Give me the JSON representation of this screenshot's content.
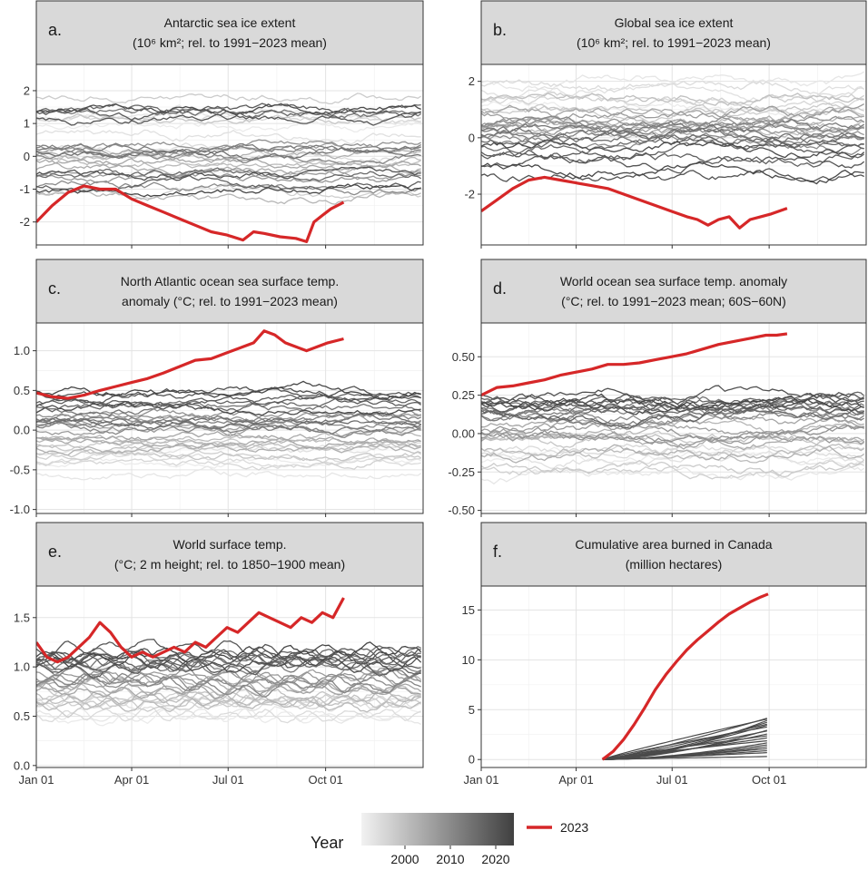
{
  "figure": {
    "legend": {
      "colorbar_title": "Year",
      "colorbar_ticks": [
        "2000",
        "2010",
        "2020"
      ],
      "highlight_label": "2023",
      "highlight_color": "#d62728",
      "gradient_light": "#f2f2f2",
      "gradient_dark": "#404040"
    }
  },
  "chart_data": [
    {
      "id": "a",
      "type": "line",
      "label": "a.",
      "title_line1": "Antarctic sea ice extent",
      "title_line2": "(10⁶ km²; rel. to 1991−2023 mean)",
      "ylim": [
        -2.7,
        2.8
      ],
      "yticks": [
        -2,
        -1,
        0,
        1,
        2
      ],
      "ytick_labels": [
        "-2",
        "-1",
        "0",
        "1",
        "2"
      ],
      "xlim": [
        0,
        365
      ],
      "xticks": [
        0,
        90,
        181,
        273
      ],
      "xtick_labels": [],
      "background_band": [
        -1.2,
        1.8
      ],
      "x_end": 365,
      "highlight_2023": {
        "x": [
          0,
          15,
          30,
          45,
          60,
          75,
          90,
          105,
          120,
          135,
          150,
          165,
          180,
          195,
          205,
          215,
          230,
          245,
          255,
          262,
          270,
          278,
          290
        ],
        "y": [
          -2.0,
          -1.5,
          -1.1,
          -0.9,
          -1.0,
          -1.0,
          -1.3,
          -1.5,
          -1.7,
          -1.9,
          -2.1,
          -2.3,
          -2.4,
          -2.55,
          -2.3,
          -2.35,
          -2.45,
          -2.5,
          -2.6,
          -2.0,
          -1.8,
          -1.6,
          -1.4
        ]
      }
    },
    {
      "id": "b",
      "type": "line",
      "label": "b.",
      "title_line1": "Global sea ice extent",
      "title_line2": "(10⁶ km²; rel. to 1991−2023 mean)",
      "ylim": [
        -3.8,
        2.6
      ],
      "yticks": [
        -2,
        0,
        2
      ],
      "ytick_labels": [
        "-2",
        "0",
        "2"
      ],
      "xlim": [
        0,
        365
      ],
      "xticks": [
        0,
        90,
        181,
        273
      ],
      "xtick_labels": [],
      "background_band": [
        -2.0,
        2.2
      ],
      "x_end": 365,
      "highlight_2023": {
        "x": [
          0,
          15,
          30,
          45,
          60,
          75,
          90,
          105,
          120,
          135,
          150,
          165,
          180,
          195,
          205,
          215,
          225,
          235,
          245,
          255,
          265,
          275,
          290
        ],
        "y": [
          -2.6,
          -2.2,
          -1.8,
          -1.5,
          -1.4,
          -1.5,
          -1.6,
          -1.7,
          -1.8,
          -2.0,
          -2.2,
          -2.4,
          -2.6,
          -2.8,
          -2.9,
          -3.1,
          -2.9,
          -2.8,
          -3.2,
          -2.9,
          -2.8,
          -2.7,
          -2.5
        ]
      }
    },
    {
      "id": "c",
      "type": "line",
      "label": "c.",
      "title_line1": "North Atlantic ocean sea surface temp.",
      "title_line2": "anomaly (°C; rel. to 1991−2023 mean)",
      "ylim": [
        -1.05,
        1.35
      ],
      "yticks": [
        -1.0,
        -0.5,
        0.0,
        0.5,
        1.0
      ],
      "ytick_labels": [
        "-1.0",
        "-0.5",
        "0.0",
        "0.5",
        "1.0"
      ],
      "xlim": [
        0,
        365
      ],
      "xticks": [
        0,
        90,
        181,
        273
      ],
      "xtick_labels": [],
      "background_band": [
        -0.6,
        0.6
      ],
      "x_end": 365,
      "highlight_2023": {
        "x": [
          0,
          15,
          30,
          45,
          60,
          75,
          90,
          105,
          120,
          135,
          150,
          165,
          175,
          185,
          195,
          205,
          215,
          225,
          235,
          245,
          255,
          265,
          275,
          290
        ],
        "y": [
          0.47,
          0.42,
          0.4,
          0.44,
          0.5,
          0.55,
          0.6,
          0.65,
          0.72,
          0.8,
          0.88,
          0.9,
          0.95,
          1.0,
          1.05,
          1.1,
          1.25,
          1.2,
          1.1,
          1.05,
          1.0,
          1.05,
          1.1,
          1.15
        ]
      }
    },
    {
      "id": "d",
      "type": "line",
      "label": "d.",
      "title_line1": "World ocean sea surface temp. anomaly",
      "title_line2": "(°C; rel. to 1991−2023 mean; 60S−60N)",
      "ylim": [
        -0.52,
        0.72
      ],
      "yticks": [
        -0.5,
        -0.25,
        0.0,
        0.25,
        0.5
      ],
      "ytick_labels": [
        "-0.50",
        "-0.25",
        "0.00",
        "0.25",
        "0.50"
      ],
      "xlim": [
        0,
        365
      ],
      "xticks": [
        0,
        90,
        181,
        273
      ],
      "xtick_labels": [],
      "background_band": [
        -0.35,
        0.4
      ],
      "x_end": 365,
      "highlight_2023": {
        "x": [
          0,
          15,
          30,
          45,
          60,
          75,
          90,
          105,
          120,
          135,
          150,
          165,
          180,
          195,
          210,
          225,
          240,
          255,
          270,
          280,
          290
        ],
        "y": [
          0.25,
          0.3,
          0.31,
          0.33,
          0.35,
          0.38,
          0.4,
          0.42,
          0.45,
          0.45,
          0.46,
          0.48,
          0.5,
          0.52,
          0.55,
          0.58,
          0.6,
          0.62,
          0.64,
          0.64,
          0.65
        ]
      }
    },
    {
      "id": "e",
      "type": "line",
      "label": "e.",
      "title_line1": "World surface temp.",
      "title_line2": "(°C; 2 m height; rel. to 1850−1900 mean)",
      "ylim": [
        -0.02,
        1.82
      ],
      "yticks": [
        0.0,
        0.5,
        1.0,
        1.5
      ],
      "ytick_labels": [
        "0.0",
        "0.5",
        "1.0",
        "1.5"
      ],
      "xlim": [
        0,
        365
      ],
      "xticks": [
        0,
        90,
        181,
        273
      ],
      "xtick_labels": [
        "Jan 01",
        "Apr 01",
        "Jul 01",
        "Oct 01"
      ],
      "background_band": [
        0.4,
        1.3
      ],
      "x_end": 365,
      "highlight_2023": {
        "x": [
          0,
          10,
          20,
          30,
          40,
          50,
          60,
          70,
          80,
          90,
          100,
          110,
          120,
          130,
          140,
          150,
          160,
          170,
          180,
          190,
          200,
          210,
          220,
          230,
          240,
          250,
          260,
          270,
          280,
          290
        ],
        "y": [
          1.25,
          1.1,
          1.05,
          1.1,
          1.2,
          1.3,
          1.45,
          1.35,
          1.2,
          1.1,
          1.15,
          1.1,
          1.15,
          1.2,
          1.15,
          1.25,
          1.2,
          1.3,
          1.4,
          1.35,
          1.45,
          1.55,
          1.5,
          1.45,
          1.4,
          1.5,
          1.45,
          1.55,
          1.5,
          1.7
        ]
      }
    },
    {
      "id": "f",
      "type": "line",
      "label": "f.",
      "title_line1": "Cumulative area burned in Canada",
      "title_line2": "(million hectares)",
      "ylim": [
        -0.8,
        17.4
      ],
      "yticks": [
        0,
        5,
        10,
        15
      ],
      "ytick_labels": [
        "0",
        "5",
        "10",
        "15"
      ],
      "xlim": [
        0,
        365
      ],
      "xticks": [
        0,
        90,
        181,
        273
      ],
      "xtick_labels": [
        "Jan 01",
        "Apr 01",
        "Jul 01",
        "Oct 01"
      ],
      "cumulative": true,
      "cumulative_start": 115,
      "cumulative_end": 273,
      "cumulative_finals": [
        0.3,
        0.7,
        1.1,
        1.5,
        1.9,
        2.2,
        2.6,
        3.0,
        3.3,
        3.6,
        3.8,
        4.0,
        4.1,
        4.2,
        0.9,
        1.3,
        2.4,
        2.9,
        3.5,
        1.7
      ],
      "highlight_2023": {
        "x": [
          115,
          125,
          135,
          145,
          155,
          165,
          175,
          185,
          195,
          205,
          215,
          225,
          235,
          245,
          255,
          265,
          272
        ],
        "y": [
          0.0,
          0.8,
          2.0,
          3.5,
          5.2,
          7.0,
          8.5,
          9.8,
          11.0,
          12.0,
          12.9,
          13.8,
          14.6,
          15.2,
          15.8,
          16.3,
          16.6
        ]
      }
    }
  ]
}
